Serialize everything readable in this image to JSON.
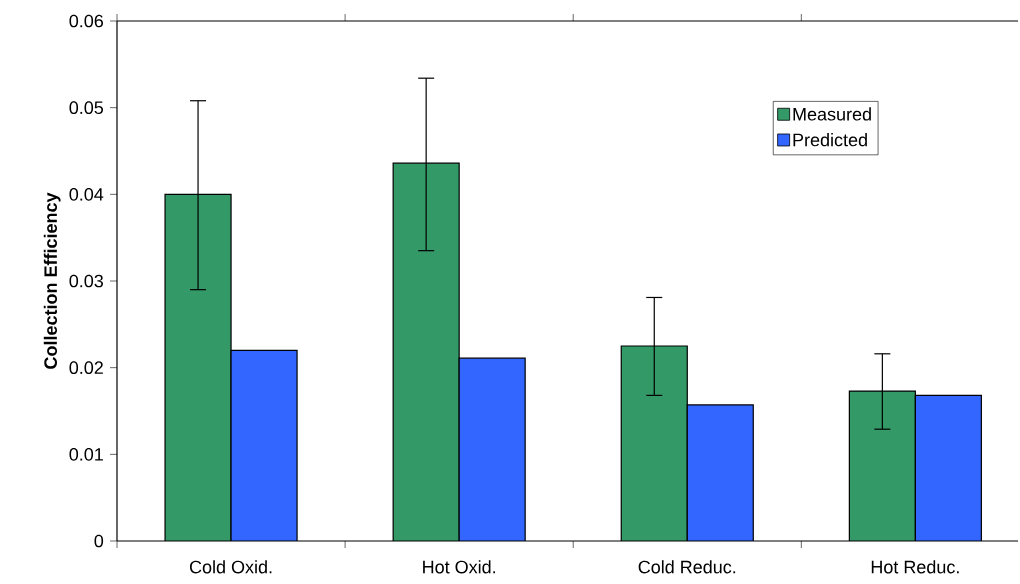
{
  "chart_data": {
    "type": "bar",
    "ylabel": "Collection Efficiency",
    "categories": [
      "Cold Oxid.",
      "Hot Oxid.",
      "Cold Reduc.",
      "Hot Reduc."
    ],
    "series": [
      {
        "name": "Measured",
        "color": "#339966",
        "values": [
          0.04,
          0.0436,
          0.0225,
          0.0173
        ],
        "errors": [
          [
            0.029,
            0.0508
          ],
          [
            0.0335,
            0.0534
          ],
          [
            0.0168,
            0.0281
          ],
          [
            0.0129,
            0.0216
          ]
        ]
      },
      {
        "name": "Predicted",
        "color": "#3366ff",
        "values": [
          0.022,
          0.0211,
          0.0157,
          0.0168
        ]
      }
    ],
    "ylim": [
      0,
      0.06
    ],
    "yticks": [
      0,
      0.01,
      0.02,
      0.03,
      0.04,
      0.05,
      0.06
    ],
    "grid": false,
    "legend": "top right"
  }
}
